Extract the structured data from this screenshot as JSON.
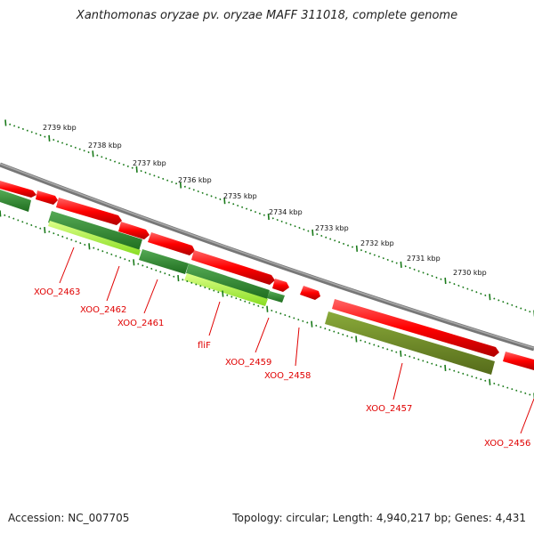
{
  "title": "Xanthomonas oryzae pv. oryzae MAFF 311018, complete genome",
  "footer": {
    "accession": "Accession: NC_007705",
    "summary": "Topology: circular; Length: 4,940,217 bp; Genes: 4,431"
  },
  "kbp_labels": [
    "2739 kbp",
    "2738 kbp",
    "2737 kbp",
    "2736 kbp",
    "2735 kbp",
    "2734 kbp",
    "2733 kbp",
    "2732 kbp",
    "2731 kbp",
    "2730 kbp"
  ],
  "gene_labels": [
    "XOO_2463",
    "XOO_2462",
    "XOO_2461",
    "fliF",
    "XOO_2459",
    "XOO_2458",
    "XOO_2457",
    "XOO_2456"
  ],
  "colors": {
    "forward_gene": "#ff1a1a",
    "reverse_gene_dark": "#2e8b2e",
    "reverse_gene_light": "#aaff44",
    "reverse_gene_olive": "#6b8e23",
    "backbone": "#7a7a7a",
    "ticks": "#1a7a1a",
    "labels": "#e00000"
  }
}
